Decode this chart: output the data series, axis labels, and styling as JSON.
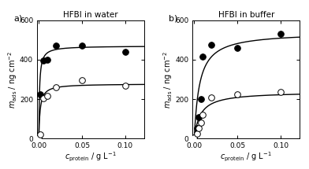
{
  "title_a": "HFBI in water",
  "title_b": "HFBI in buffer",
  "label_a": "a)",
  "label_b": "b)",
  "xlabel": "$c_\\mathrm{protein}$ / g L$^{-1}$",
  "ylabel": "$m_\\mathrm{ads}$ / ng cm$^{-2}$",
  "ylim": [
    0,
    600
  ],
  "xlim": [
    -0.002,
    0.122
  ],
  "yticks": [
    0,
    200,
    400,
    600
  ],
  "xticks": [
    0.0,
    0.05,
    0.1
  ],
  "water_qcm_x": [
    0.0,
    0.002,
    0.005,
    0.01,
    0.02,
    0.05,
    0.1
  ],
  "water_qcm_y": [
    10,
    225,
    395,
    400,
    470,
    470,
    440
  ],
  "water_ell_x": [
    0.0,
    0.002,
    0.005,
    0.01,
    0.02,
    0.05,
    0.1
  ],
  "water_ell_y": [
    5,
    20,
    205,
    215,
    260,
    295,
    270
  ],
  "water_qcm_fit_Bmax": 470,
  "water_qcm_fit_Kd": 0.0008,
  "water_ell_fit_Bmax": 278,
  "water_ell_fit_Kd": 0.0015,
  "buf_qcm_x": [
    0.0,
    0.003,
    0.005,
    0.008,
    0.01,
    0.02,
    0.05,
    0.1
  ],
  "buf_qcm_y": [
    5,
    55,
    110,
    200,
    415,
    475,
    460,
    530
  ],
  "buf_ell_x": [
    0.0,
    0.003,
    0.005,
    0.008,
    0.01,
    0.02,
    0.05,
    0.1
  ],
  "buf_ell_y": [
    5,
    25,
    55,
    80,
    120,
    210,
    225,
    235
  ],
  "buf_qcm_fit_Bmax": 540,
  "buf_qcm_fit_Kd": 0.006,
  "buf_ell_fit_Bmax": 238,
  "buf_ell_fit_Kd": 0.007,
  "marker_size": 5.5,
  "line_color": "black",
  "filled_color": "black",
  "open_color": "white",
  "edge_color": "black",
  "linewidth": 1.0,
  "background": "white"
}
